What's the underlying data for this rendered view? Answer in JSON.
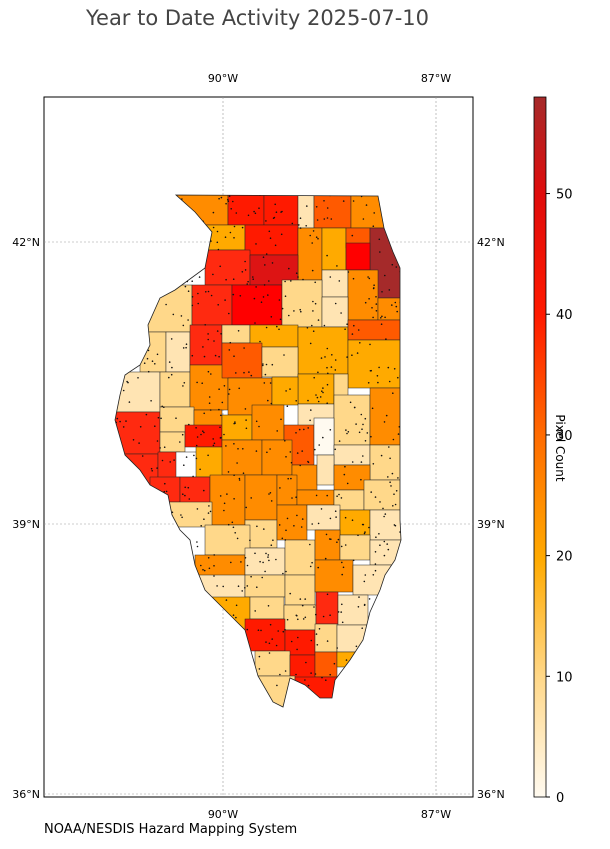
{
  "title": "Year to Date Activity 2025-07-10",
  "credit": "NOAA/NESDIS Hazard Mapping System",
  "colorbar": {
    "label": "Pixel Count",
    "min": 0,
    "max": 58,
    "ticks": [
      "0",
      "10",
      "20",
      "30",
      "40",
      "50"
    ],
    "colors": [
      "#fffaf0",
      "#ffe4b3",
      "#fdc76a",
      "#ffaa00",
      "#ff8c00",
      "#ff5a00",
      "#ff2a10",
      "#ff0000",
      "#dd1414",
      "#a52a2a"
    ]
  },
  "axes": {
    "lon_ticks_top": [
      "90°W",
      "87°W"
    ],
    "lon_ticks_bottom": [
      "90°W",
      "87°W"
    ],
    "lat_ticks_left": [
      "42°N",
      "39°N",
      "36°N"
    ],
    "lat_ticks_right": [
      "42°N",
      "39°N",
      "36°N"
    ]
  },
  "map": {
    "region": "Illinois counties",
    "extent": {
      "lon": [
        -92.5,
        -86.5
      ],
      "lat": [
        35.95,
        43.4
      ]
    }
  }
}
